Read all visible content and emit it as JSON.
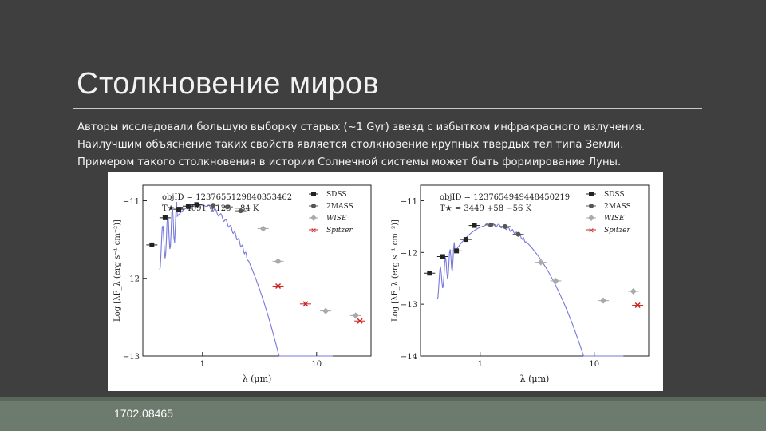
{
  "slide": {
    "title": "Столкновение миров",
    "body_lines": [
      "Авторы исследовали большую выборку старых (~1 Gyr) звезд  с избытком инфракрасного излучения.",
      "Наилучшим объяснение таких свойств является столкновение крупных твердых тел типа Земли.",
      "Примером такого столкновения в истории Солнечной системы может быть формирование Луны."
    ],
    "footer": "1702.08465"
  },
  "colors": {
    "background": "#3f3f3f",
    "footer": "#6d7b6f",
    "sdss": "#222222",
    "twomass": "#555555",
    "wise": "#aaaaaa",
    "spitzer": "#cc2222",
    "model": "#7777dd"
  },
  "chart_data": [
    {
      "type": "scatter",
      "annotation_objid": "objID = 1237655129840353462",
      "annotation_teff": "T★ = 4091 +123 −84 K",
      "xlabel": "λ (μm)",
      "ylabel": "Log [λF_λ (erg s⁻¹ cm⁻²)]",
      "x_scale": "log",
      "xlim": [
        0.3,
        30
      ],
      "ylim": [
        -13,
        -10.8
      ],
      "x_ticks": [
        1,
        10
      ],
      "x_tick_labels": [
        "1",
        "10"
      ],
      "y_ticks": [
        -13,
        -12,
        -11
      ],
      "y_tick_labels": [
        "−13",
        "−12",
        "−11"
      ],
      "legend": [
        "SDSS",
        "2MASS",
        "WISE",
        "Spitzer"
      ],
      "series": [
        {
          "name": "SDSS",
          "x": [
            0.36,
            0.47,
            0.62,
            0.75,
            0.89
          ],
          "y": [
            -11.57,
            -11.22,
            -11.11,
            -11.07,
            -11.05
          ]
        },
        {
          "name": "2MASS",
          "x": [
            1.24,
            1.65,
            2.16
          ],
          "y": [
            -11.06,
            -11.08,
            -11.13
          ]
        },
        {
          "name": "WISE",
          "x": [
            3.4,
            4.6,
            12,
            22
          ],
          "y": [
            -11.36,
            -11.78,
            -12.42,
            -12.48
          ]
        },
        {
          "name": "Spitzer",
          "x": [
            4.6,
            8,
            24
          ],
          "y": [
            -12.1,
            -12.33,
            -12.55
          ]
        }
      ]
    },
    {
      "type": "scatter",
      "annotation_objid": "objID = 1237654949448450219",
      "annotation_teff": "T★ = 3449 +58 −56 K",
      "xlabel": "λ (μm)",
      "ylabel": "Log [λF_λ (erg s⁻¹ cm⁻²)]",
      "x_scale": "log",
      "xlim": [
        0.3,
        30
      ],
      "ylim": [
        -14,
        -10.7
      ],
      "x_ticks": [
        1,
        10
      ],
      "x_tick_labels": [
        "1",
        "10"
      ],
      "y_ticks": [
        -14,
        -13,
        -12,
        -11
      ],
      "y_tick_labels": [
        "−14",
        "−13",
        "−12",
        "−11"
      ],
      "legend": [
        "SDSS",
        "2MASS",
        "WISE",
        "Spitzer"
      ],
      "series": [
        {
          "name": "SDSS",
          "x": [
            0.36,
            0.47,
            0.62,
            0.75,
            0.89
          ],
          "y": [
            -12.4,
            -12.08,
            -11.97,
            -11.75,
            -11.48
          ]
        },
        {
          "name": "2MASS",
          "x": [
            1.24,
            1.65,
            2.16
          ],
          "y": [
            -11.47,
            -11.5,
            -11.65
          ]
        },
        {
          "name": "WISE",
          "x": [
            3.4,
            4.6,
            12,
            22
          ],
          "y": [
            -12.19,
            -12.55,
            -12.93,
            -12.75
          ]
        },
        {
          "name": "Spitzer",
          "x": [
            24
          ],
          "y": [
            -13.02
          ]
        }
      ]
    }
  ]
}
